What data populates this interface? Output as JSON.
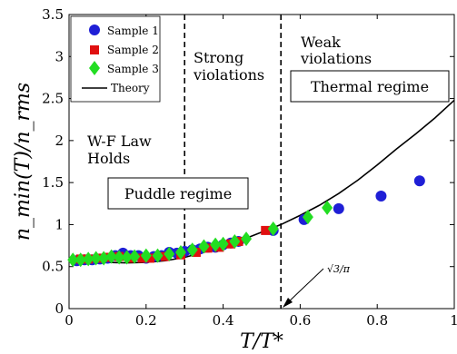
{
  "chart_data": {
    "type": "scatter",
    "xlabel": "T/T*",
    "ylabel": "n_min(T)/n_rms",
    "xlim": [
      0,
      1
    ],
    "ylim": [
      0,
      3.5
    ],
    "x_ticks": [
      "0",
      "0.2",
      "0.4",
      "0.6",
      "0.8",
      "1"
    ],
    "y_ticks": [
      "0",
      "0.5",
      "1",
      "1.5",
      "2",
      "2.5",
      "3",
      "3.5"
    ],
    "grid": false,
    "legend_position": "top-left",
    "series": [
      {
        "name": "Sample 1",
        "marker": "circle",
        "color": "#1f1fd6",
        "x": [
          0.02,
          0.04,
          0.06,
          0.08,
          0.1,
          0.12,
          0.14,
          0.16,
          0.18,
          0.2,
          0.22,
          0.24,
          0.26,
          0.28,
          0.3,
          0.32,
          0.34,
          0.36,
          0.38,
          0.4,
          0.42,
          0.44,
          0.53,
          0.61,
          0.7,
          0.81,
          0.91
        ],
        "y": [
          0.57,
          0.58,
          0.58,
          0.59,
          0.6,
          0.63,
          0.66,
          0.63,
          0.63,
          0.6,
          0.62,
          0.63,
          0.67,
          0.66,
          0.68,
          0.7,
          0.71,
          0.73,
          0.73,
          0.76,
          0.78,
          0.8,
          0.93,
          1.06,
          1.19,
          1.34,
          1.52
        ]
      },
      {
        "name": "Sample 2",
        "marker": "square",
        "color": "#e01010",
        "x": [
          0.03,
          0.05,
          0.08,
          0.1,
          0.13,
          0.16,
          0.19,
          0.21,
          0.25,
          0.29,
          0.33,
          0.36,
          0.39,
          0.42,
          0.44,
          0.51
        ],
        "y": [
          0.59,
          0.59,
          0.6,
          0.61,
          0.62,
          0.6,
          0.6,
          0.6,
          0.62,
          0.64,
          0.67,
          0.72,
          0.73,
          0.77,
          0.8,
          0.93
        ]
      },
      {
        "name": "Sample 3",
        "marker": "diamond",
        "color": "#22dd22",
        "x": [
          0.01,
          0.03,
          0.05,
          0.07,
          0.09,
          0.11,
          0.13,
          0.15,
          0.17,
          0.2,
          0.23,
          0.26,
          0.29,
          0.32,
          0.35,
          0.38,
          0.4,
          0.43,
          0.46,
          0.53,
          0.62,
          0.67
        ],
        "y": [
          0.58,
          0.58,
          0.59,
          0.6,
          0.6,
          0.62,
          0.61,
          0.61,
          0.62,
          0.63,
          0.63,
          0.65,
          0.67,
          0.7,
          0.74,
          0.76,
          0.77,
          0.8,
          0.83,
          0.95,
          1.09,
          1.2
        ]
      },
      {
        "name": "Theory",
        "type": "line",
        "color": "#000000",
        "x": [
          0,
          0.05,
          0.1,
          0.15,
          0.2,
          0.25,
          0.3,
          0.35,
          0.4,
          0.45,
          0.5,
          0.55,
          0.6,
          0.65,
          0.7,
          0.75,
          0.8,
          0.85,
          0.9,
          0.95,
          1.0
        ],
        "y": [
          0.56,
          0.555,
          0.55,
          0.545,
          0.55,
          0.57,
          0.61,
          0.67,
          0.74,
          0.82,
          0.91,
          1.0,
          1.11,
          1.23,
          1.37,
          1.53,
          1.71,
          1.9,
          2.08,
          2.27,
          2.48
        ]
      }
    ],
    "vlines": [
      0.3,
      0.55
    ],
    "annotations": {
      "strong": [
        "Strong",
        "violations"
      ],
      "weak": [
        "Weak",
        "violations"
      ],
      "thermal": "Thermal regime",
      "wf": [
        "W-F Law",
        "Holds"
      ],
      "puddle": "Puddle regime",
      "arrow_label": "√3/π"
    }
  }
}
